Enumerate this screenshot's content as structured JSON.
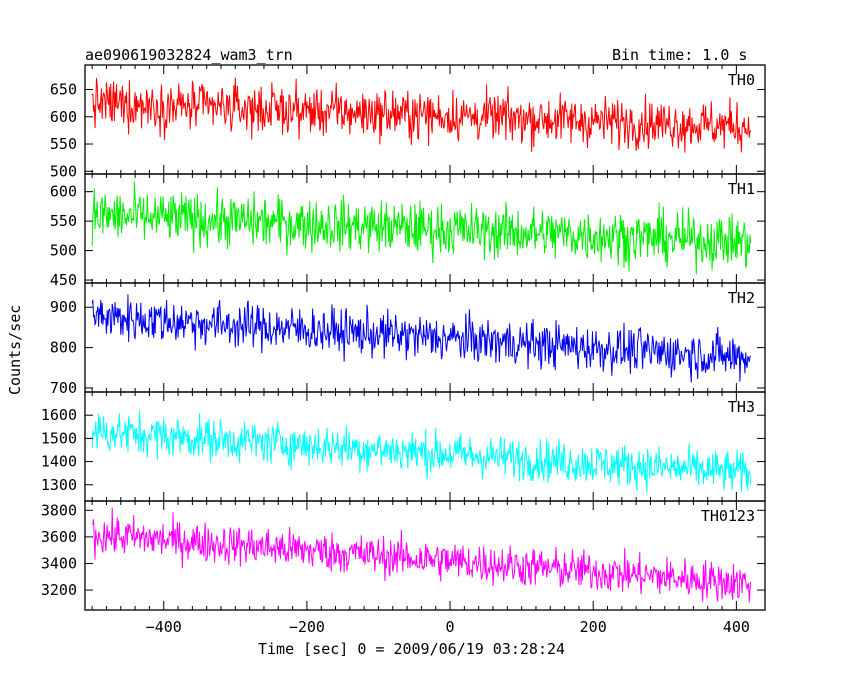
{
  "header": {
    "title": "ae090619032824_wam3_trn",
    "bin_time": "Bin time: 1.0 s"
  },
  "axes": {
    "xlabel": "Time [sec] 0 = 2009/06/19 03:28:24",
    "ylabel": "Counts/sec"
  },
  "chart_data": {
    "type": "line",
    "title": "ae090619032824_wam3_trn",
    "xlabel": "Time [sec] 0 = 2009/06/19 03:28:24",
    "ylabel": "Counts/sec",
    "xlim": [
      -510,
      440
    ],
    "xticks": [
      -400,
      -200,
      0,
      200,
      400
    ],
    "x_start": -500,
    "x_end": 420,
    "bin_seconds": 1.0,
    "panels": [
      {
        "name": "TH0",
        "color": "#ff0000",
        "ylim": [
          495,
          695
        ],
        "yticks": [
          500,
          550,
          600,
          650
        ],
        "level_start": 625,
        "level_end": 582,
        "noise": 22
      },
      {
        "name": "TH1",
        "color": "#00ee00",
        "ylim": [
          445,
          630
        ],
        "yticks": [
          450,
          500,
          550,
          600
        ],
        "level_start": 560,
        "level_end": 515,
        "noise": 22
      },
      {
        "name": "TH2",
        "color": "#0000ee",
        "ylim": [
          690,
          960
        ],
        "yticks": [
          700,
          800,
          900
        ],
        "level_start": 878,
        "level_end": 775,
        "noise": 28
      },
      {
        "name": "TH3",
        "color": "#00ffff",
        "ylim": [
          1230,
          1700
        ],
        "yticks": [
          1300,
          1400,
          1500,
          1600
        ],
        "level_start": 1530,
        "level_end": 1350,
        "noise": 45
      },
      {
        "name": "TH0123",
        "color": "#ff00ff",
        "ylim": [
          3050,
          3870
        ],
        "yticks": [
          3200,
          3400,
          3600,
          3800
        ],
        "level_start": 3620,
        "level_end": 3250,
        "noise": 75
      }
    ]
  }
}
